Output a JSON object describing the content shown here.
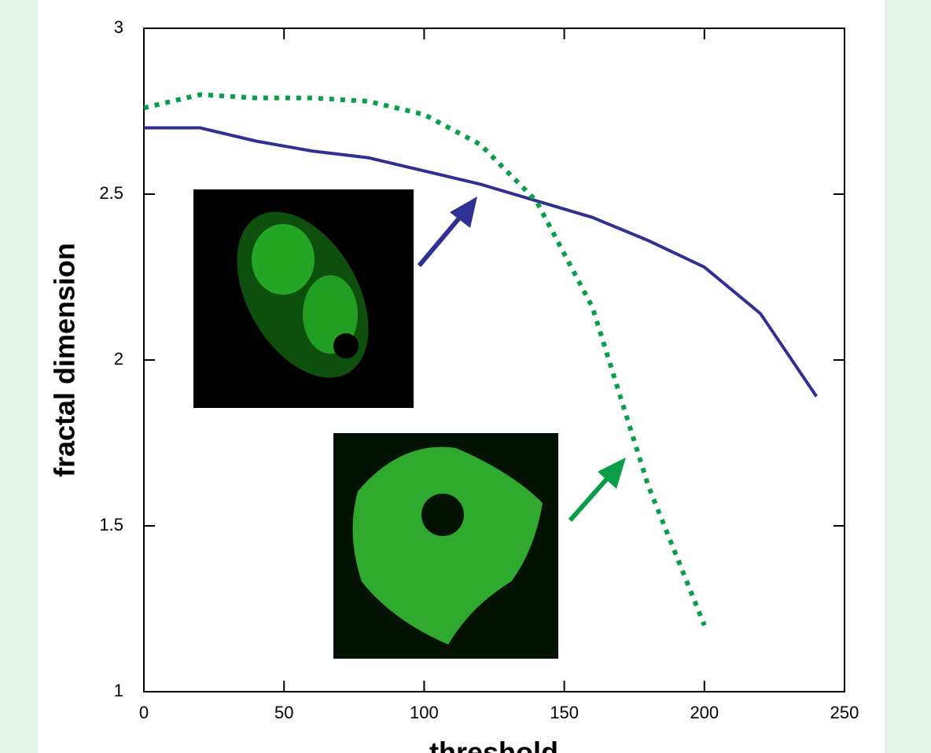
{
  "chart_data": {
    "type": "line",
    "xlabel": "threshold",
    "ylabel": "fractal dimension",
    "x": [
      0,
      20,
      40,
      60,
      80,
      100,
      120,
      140,
      160,
      180,
      200,
      220,
      240
    ],
    "series": [
      {
        "color": "#2e3192",
        "style": "solid",
        "values": [
          2.7,
          2.7,
          2.66,
          2.63,
          2.61,
          2.57,
          2.53,
          2.48,
          2.43,
          2.36,
          2.28,
          2.14,
          1.89
        ]
      },
      {
        "color": "#0a9e4a",
        "style": "dotted",
        "values": [
          2.76,
          2.8,
          2.79,
          2.79,
          2.78,
          2.74,
          2.65,
          2.48,
          2.16,
          1.62,
          1.2,
          null,
          null
        ]
      }
    ],
    "xlim": [
      0,
      250
    ],
    "xticks": [
      0,
      50,
      100,
      150,
      200,
      250
    ],
    "ylim": [
      1,
      3
    ],
    "yticks": [
      1,
      1.5,
      2,
      2.5,
      3
    ]
  }
}
